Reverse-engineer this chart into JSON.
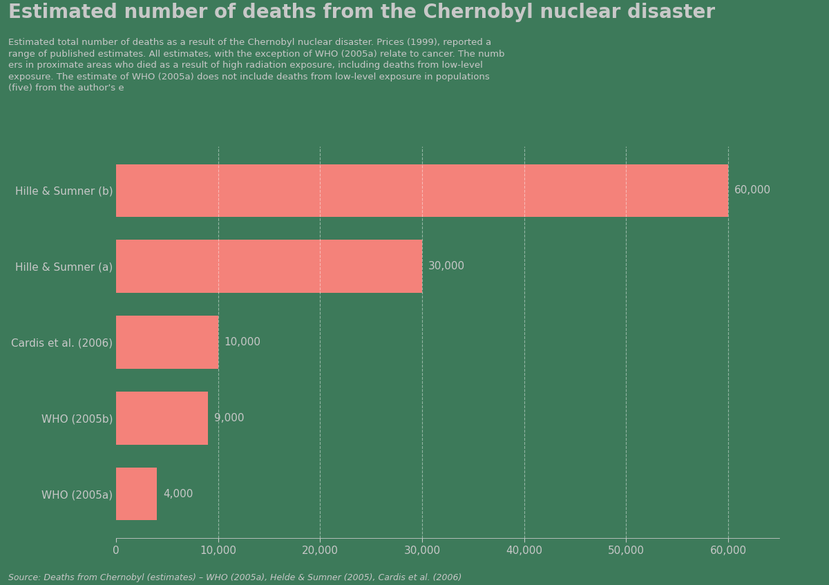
{
  "title": "Estimated number of deaths from the Chernobyl nuclear disaster",
  "subtitle_text": "Estimated total number of deaths as a result of the Chernobyl nuclear disaster. Prices (1999), reported a\nrange of published estimates. All estimates, with the exception of WHO (2005a) relate to cancer. The numb\ners in proximate areas who died as a result of high radiation exposure, including deaths from low-level\nexposure. The estimate of WHO (2005a) does not include deaths from low-level exposure in populations\n(five) from the author's e",
  "categories": [
    "Hille & Sumner (b)",
    "Hille & Sumner (a)",
    "Cardis et al. (2006)",
    "WHO (2005b)",
    "WHO (2005a)"
  ],
  "values": [
    60000,
    30000,
    10000,
    9000,
    4000
  ],
  "bar_color": "#f4827a",
  "background_color": "#3d7a5a",
  "text_color": "#c8c8c8",
  "grid_color": "#ffffff",
  "xlim": [
    0,
    65000
  ],
  "xtick_values": [
    0,
    10000,
    20000,
    30000,
    40000,
    50000,
    60000
  ],
  "bar_labels": [
    "60,000",
    "30,000",
    "10,000",
    "9,000",
    "4,000"
  ],
  "footer": "Source: Deaths from Chernobyl (estimates) – WHO (2005a), Helde & Sumner (2005), Cardis et al. (2006)",
  "title_fontsize": 20,
  "subtitle_fontsize": 9.5,
  "label_fontsize": 11,
  "tick_fontsize": 11,
  "bar_label_fontsize": 11,
  "footer_fontsize": 9
}
